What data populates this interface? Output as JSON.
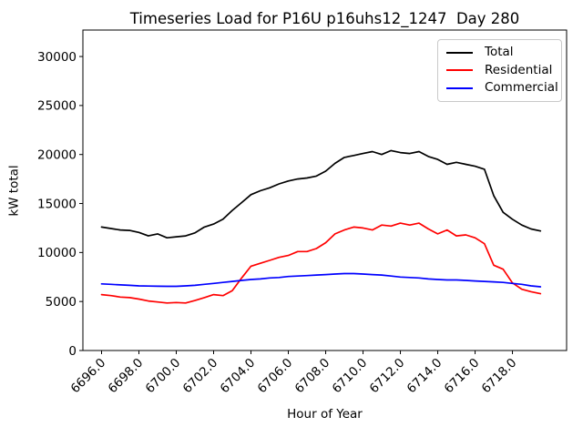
{
  "figure": {
    "kind": "matplotlib-line-figure",
    "background": "#ffffff"
  },
  "chart_data": {
    "type": "line",
    "title": "Timeseries Load for P16U p16uhs12_1247  Day 280",
    "xlabel": "Hour of Year",
    "ylabel": "kW total",
    "grid": false,
    "legend_position": "upper right",
    "xlim": [
      6695.0,
      6720.9
    ],
    "ylim": [
      0,
      32700
    ],
    "xticks": [
      6696,
      6698,
      6700,
      6702,
      6704,
      6706,
      6708,
      6710,
      6712,
      6714,
      6716,
      6718
    ],
    "xtick_labels": [
      "6696.0",
      "6698.0",
      "6700.0",
      "6702.0",
      "6704.0",
      "6706.0",
      "6708.0",
      "6710.0",
      "6712.0",
      "6714.0",
      "6716.0",
      "6718.0"
    ],
    "yticks": [
      0,
      5000,
      10000,
      15000,
      20000,
      25000,
      30000
    ],
    "ytick_labels": [
      "0",
      "5000",
      "10000",
      "15000",
      "20000",
      "25000",
      "30000"
    ],
    "x": [
      6696.0,
      6696.5,
      6697.0,
      6697.5,
      6698.0,
      6698.5,
      6699.0,
      6699.5,
      6700.0,
      6700.5,
      6701.0,
      6701.5,
      6702.0,
      6702.5,
      6703.0,
      6703.5,
      6704.0,
      6704.5,
      6705.0,
      6705.5,
      6706.0,
      6706.5,
      6707.0,
      6707.5,
      6708.0,
      6708.5,
      6709.0,
      6709.5,
      6710.0,
      6710.5,
      6711.0,
      6711.5,
      6712.0,
      6712.5,
      6713.0,
      6713.5,
      6714.0,
      6714.5,
      6715.0,
      6715.5,
      6716.0,
      6716.5,
      6717.0,
      6717.5,
      6718.0,
      6718.5,
      6719.0,
      6719.5
    ],
    "series": [
      {
        "name": "Total",
        "color": "#000000",
        "values": [
          12600,
          12450,
          12300,
          12250,
          12050,
          11700,
          11900,
          11500,
          11600,
          11700,
          12000,
          12600,
          12900,
          13400,
          14300,
          15100,
          15900,
          16300,
          16600,
          17000,
          17300,
          17500,
          17600,
          17800,
          18300,
          19100,
          19700,
          19900,
          20100,
          20300,
          20000,
          20400,
          20200,
          20100,
          20300,
          19800,
          19500,
          19000,
          19200,
          19000,
          18800,
          18500,
          15800,
          14100,
          13400,
          12800,
          12400,
          12200
        ]
      },
      {
        "name": "Residential",
        "color": "#ff0000",
        "values": [
          5700,
          5600,
          5450,
          5400,
          5250,
          5050,
          4950,
          4850,
          4900,
          4850,
          5100,
          5400,
          5700,
          5600,
          6100,
          7400,
          8600,
          8900,
          9200,
          9500,
          9700,
          10100,
          10100,
          10400,
          11000,
          11900,
          12300,
          12600,
          12500,
          12300,
          12800,
          12700,
          13000,
          12800,
          13000,
          12400,
          11900,
          12300,
          11700,
          11800,
          11500,
          10900,
          8700,
          8300,
          6900,
          6250,
          6000,
          5800
        ]
      },
      {
        "name": "Commercial",
        "color": "#0000ff",
        "values": [
          6800,
          6750,
          6700,
          6650,
          6600,
          6580,
          6560,
          6550,
          6550,
          6600,
          6650,
          6750,
          6850,
          6950,
          7050,
          7150,
          7250,
          7300,
          7400,
          7450,
          7550,
          7600,
          7650,
          7700,
          7750,
          7800,
          7850,
          7850,
          7800,
          7750,
          7700,
          7600,
          7500,
          7450,
          7400,
          7300,
          7250,
          7200,
          7200,
          7150,
          7100,
          7050,
          7000,
          6950,
          6850,
          6750,
          6600,
          6500
        ]
      }
    ]
  }
}
